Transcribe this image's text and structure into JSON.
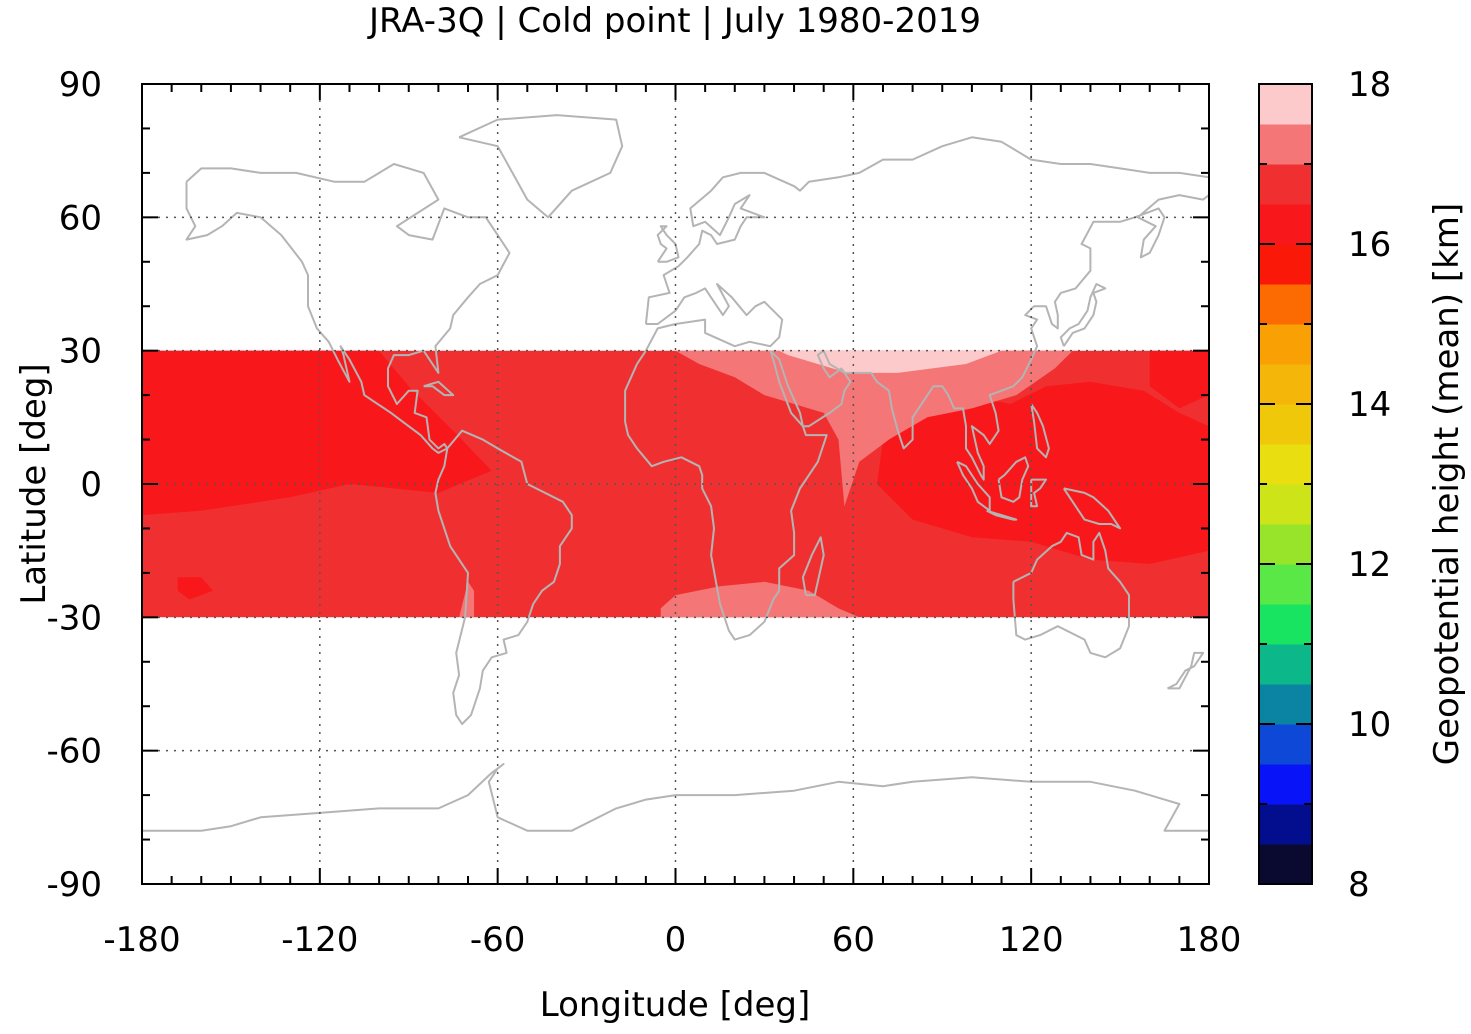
{
  "chart_data": {
    "type": "heatmap",
    "title": "JRA-3Q | Cold point | July 1980-2019",
    "xlabel": "Longitude [deg]",
    "ylabel": "Latitude [deg]",
    "xlim": [
      -180,
      180
    ],
    "ylim": [
      -90,
      90
    ],
    "xticks": [
      -180,
      -120,
      -60,
      0,
      60,
      120,
      180
    ],
    "yticks": [
      -90,
      -60,
      -30,
      0,
      30,
      60,
      90
    ],
    "x_minor_step": 10,
    "y_minor_step": 10,
    "grid": true,
    "data_lat_range": [
      -30,
      30
    ],
    "colorbar": {
      "label": "Geopotential height (mean) [km]",
      "min": 8,
      "max": 18,
      "step": 0.5,
      "ticks": [
        8,
        10,
        12,
        14,
        16,
        18
      ],
      "colors": [
        "#0a0a30",
        "#020e8e",
        "#0814f7",
        "#0e48d6",
        "#0a84a2",
        "#0cb88a",
        "#18e462",
        "#5ae846",
        "#98e42a",
        "#cce418",
        "#e8de10",
        "#f0c80a",
        "#f4b608",
        "#f8a004",
        "#fc6a02",
        "#fa1808",
        "#f8181c",
        "#f03030",
        "#f47676",
        "#fccaca"
      ]
    },
    "field_levels": [
      {
        "range": [
          16.0,
          16.5
        ],
        "color": "#f8181c"
      },
      {
        "range": [
          16.5,
          17.0
        ],
        "color": "#f03030"
      },
      {
        "range": [
          17.0,
          17.5
        ],
        "color": "#f47676"
      },
      {
        "range": [
          17.5,
          18.0
        ],
        "color": "#fccaca"
      }
    ],
    "field_regions": [
      {
        "level": 16.75,
        "polygon": [
          [
            -180,
            30
          ],
          [
            180,
            30
          ],
          [
            180,
            -30
          ],
          [
            -180,
            -30
          ]
        ]
      },
      {
        "level": 16.25,
        "polygon": [
          [
            -180,
            30
          ],
          [
            -100,
            30
          ],
          [
            -90,
            22
          ],
          [
            -75,
            12
          ],
          [
            -62,
            3
          ],
          [
            -80,
            -2
          ],
          [
            -110,
            0
          ],
          [
            -130,
            -3
          ],
          [
            -160,
            -6
          ],
          [
            -180,
            -7
          ]
        ]
      },
      {
        "level": 16.25,
        "polygon": [
          [
            -150,
            30
          ],
          [
            -115,
            30
          ],
          [
            -118,
            25
          ],
          [
            -150,
            25
          ]
        ]
      },
      {
        "level": 16.25,
        "polygon": [
          [
            -168,
            -21
          ],
          [
            -160,
            -21
          ],
          [
            -156,
            -24
          ],
          [
            -164,
            -26
          ],
          [
            -168,
            -24
          ]
        ]
      },
      {
        "level": 16.25,
        "polygon": [
          [
            160,
            30
          ],
          [
            180,
            30
          ],
          [
            180,
            20
          ],
          [
            170,
            17
          ],
          [
            160,
            22
          ]
        ]
      },
      {
        "level": 16.25,
        "polygon": [
          [
            180,
            -15
          ],
          [
            160,
            -18
          ],
          [
            140,
            -17
          ],
          [
            120,
            -13
          ],
          [
            100,
            -12
          ],
          [
            80,
            -8
          ],
          [
            68,
            0
          ],
          [
            70,
            10
          ],
          [
            82,
            16
          ],
          [
            98,
            20
          ],
          [
            113,
            18
          ],
          [
            125,
            22
          ],
          [
            140,
            23
          ],
          [
            158,
            21
          ],
          [
            170,
            16
          ],
          [
            180,
            13
          ]
        ]
      },
      {
        "level": 17.25,
        "polygon": [
          [
            0,
            30
          ],
          [
            134,
            30
          ],
          [
            128,
            26
          ],
          [
            115,
            20
          ],
          [
            100,
            17
          ],
          [
            85,
            15
          ],
          [
            72,
            10
          ],
          [
            62,
            5
          ],
          [
            57,
            -5
          ],
          [
            55,
            10
          ],
          [
            50,
            16
          ],
          [
            40,
            18
          ],
          [
            30,
            20
          ],
          [
            20,
            24
          ],
          [
            8,
            27
          ]
        ]
      },
      {
        "level": 17.75,
        "polygon": [
          [
            35,
            30
          ],
          [
            110,
            30
          ],
          [
            98,
            27
          ],
          [
            75,
            25
          ],
          [
            58,
            25
          ],
          [
            48,
            27
          ],
          [
            38,
            29
          ]
        ]
      },
      {
        "level": 17.25,
        "polygon": [
          [
            -5,
            -30
          ],
          [
            62,
            -30
          ],
          [
            55,
            -28
          ],
          [
            45,
            -24
          ],
          [
            30,
            -22
          ],
          [
            15,
            -23
          ],
          [
            0,
            -25
          ],
          [
            -5,
            -28
          ]
        ]
      },
      {
        "level": 17.25,
        "polygon": [
          [
            -73,
            -30
          ],
          [
            -68,
            -30
          ],
          [
            -68,
            -24
          ],
          [
            -70,
            -22
          ]
        ]
      }
    ],
    "coastlines_shown": true
  }
}
